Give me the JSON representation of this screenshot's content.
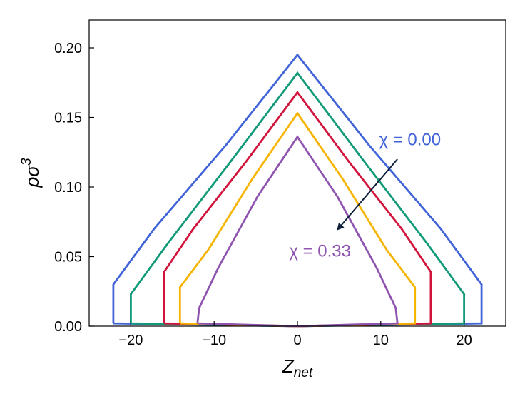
{
  "chart_data": {
    "type": "line",
    "xlim": [
      -25,
      25
    ],
    "ylim": [
      0,
      0.22
    ],
    "x_ticks": [
      -20,
      -10,
      0,
      10,
      20
    ],
    "x_tick_labels": [
      "−20",
      "−10",
      "0",
      "10",
      "20"
    ],
    "y_ticks": [
      0.0,
      0.05,
      0.1,
      0.15,
      0.2
    ],
    "y_tick_labels": [
      "0.00",
      "0.05",
      "0.10",
      "0.15",
      "0.20"
    ],
    "xlabel": {
      "base": "Z",
      "sub": "net"
    },
    "ylabel": {
      "base": "ρσ",
      "sup": "3"
    },
    "grid": false,
    "series": [
      {
        "color": "#4063d8",
        "points": [
          [
            -22.1,
            0.002
          ],
          [
            -22.1,
            0.03
          ],
          [
            -17.2,
            0.07
          ],
          [
            -8.6,
            0.13
          ],
          [
            0,
            0.195
          ],
          [
            8.6,
            0.13
          ],
          [
            17.2,
            0.07
          ],
          [
            22.1,
            0.03
          ],
          [
            22.1,
            0.002
          ],
          [
            0,
            0.0
          ],
          [
            -22.1,
            0.002
          ]
        ]
      },
      {
        "color": "#109a78",
        "points": [
          [
            -20.0,
            0.002
          ],
          [
            -20.0,
            0.023
          ],
          [
            -15.5,
            0.06
          ],
          [
            -7.8,
            0.12
          ],
          [
            0,
            0.182
          ],
          [
            7.8,
            0.12
          ],
          [
            15.5,
            0.06
          ],
          [
            20.0,
            0.023
          ],
          [
            20.0,
            0.002
          ],
          [
            0,
            0.0
          ],
          [
            -20.0,
            0.002
          ]
        ]
      },
      {
        "color": "#d2143c",
        "points": [
          [
            -16.0,
            0.002
          ],
          [
            -16.0,
            0.039
          ],
          [
            -12.5,
            0.07
          ],
          [
            -6.2,
            0.118
          ],
          [
            0,
            0.168
          ],
          [
            6.2,
            0.118
          ],
          [
            12.5,
            0.07
          ],
          [
            16.0,
            0.039
          ],
          [
            16.0,
            0.002
          ],
          [
            0,
            0.0
          ],
          [
            -16.0,
            0.002
          ]
        ]
      },
      {
        "color": "#f5b400",
        "points": [
          [
            -14.1,
            0.002
          ],
          [
            -14.1,
            0.028
          ],
          [
            -10.7,
            0.055
          ],
          [
            -5.4,
            0.106
          ],
          [
            0,
            0.153
          ],
          [
            5.4,
            0.106
          ],
          [
            10.7,
            0.055
          ],
          [
            14.1,
            0.028
          ],
          [
            14.1,
            0.002
          ],
          [
            0,
            0.0
          ],
          [
            -14.1,
            0.002
          ]
        ]
      },
      {
        "color": "#8e54b0",
        "points": [
          [
            -12.0,
            0.002
          ],
          [
            -11.8,
            0.013
          ],
          [
            -9.5,
            0.042
          ],
          [
            -4.8,
            0.093
          ],
          [
            0,
            0.136
          ],
          [
            4.8,
            0.093
          ],
          [
            9.5,
            0.042
          ],
          [
            11.8,
            0.013
          ],
          [
            12.0,
            0.002
          ],
          [
            0,
            0.0
          ],
          [
            -12.0,
            0.002
          ]
        ]
      }
    ],
    "annotations": [
      {
        "text": "χ = 0.00",
        "color": "#4063d8",
        "x": 9.8,
        "y": 0.13
      },
      {
        "text": "χ = 0.33",
        "color": "#8e54b0",
        "x": -1.0,
        "y": 0.05
      }
    ],
    "arrow": {
      "color": "#000000",
      "from": [
        12.0,
        0.12
      ],
      "to": [
        4.9,
        0.07
      ]
    }
  }
}
